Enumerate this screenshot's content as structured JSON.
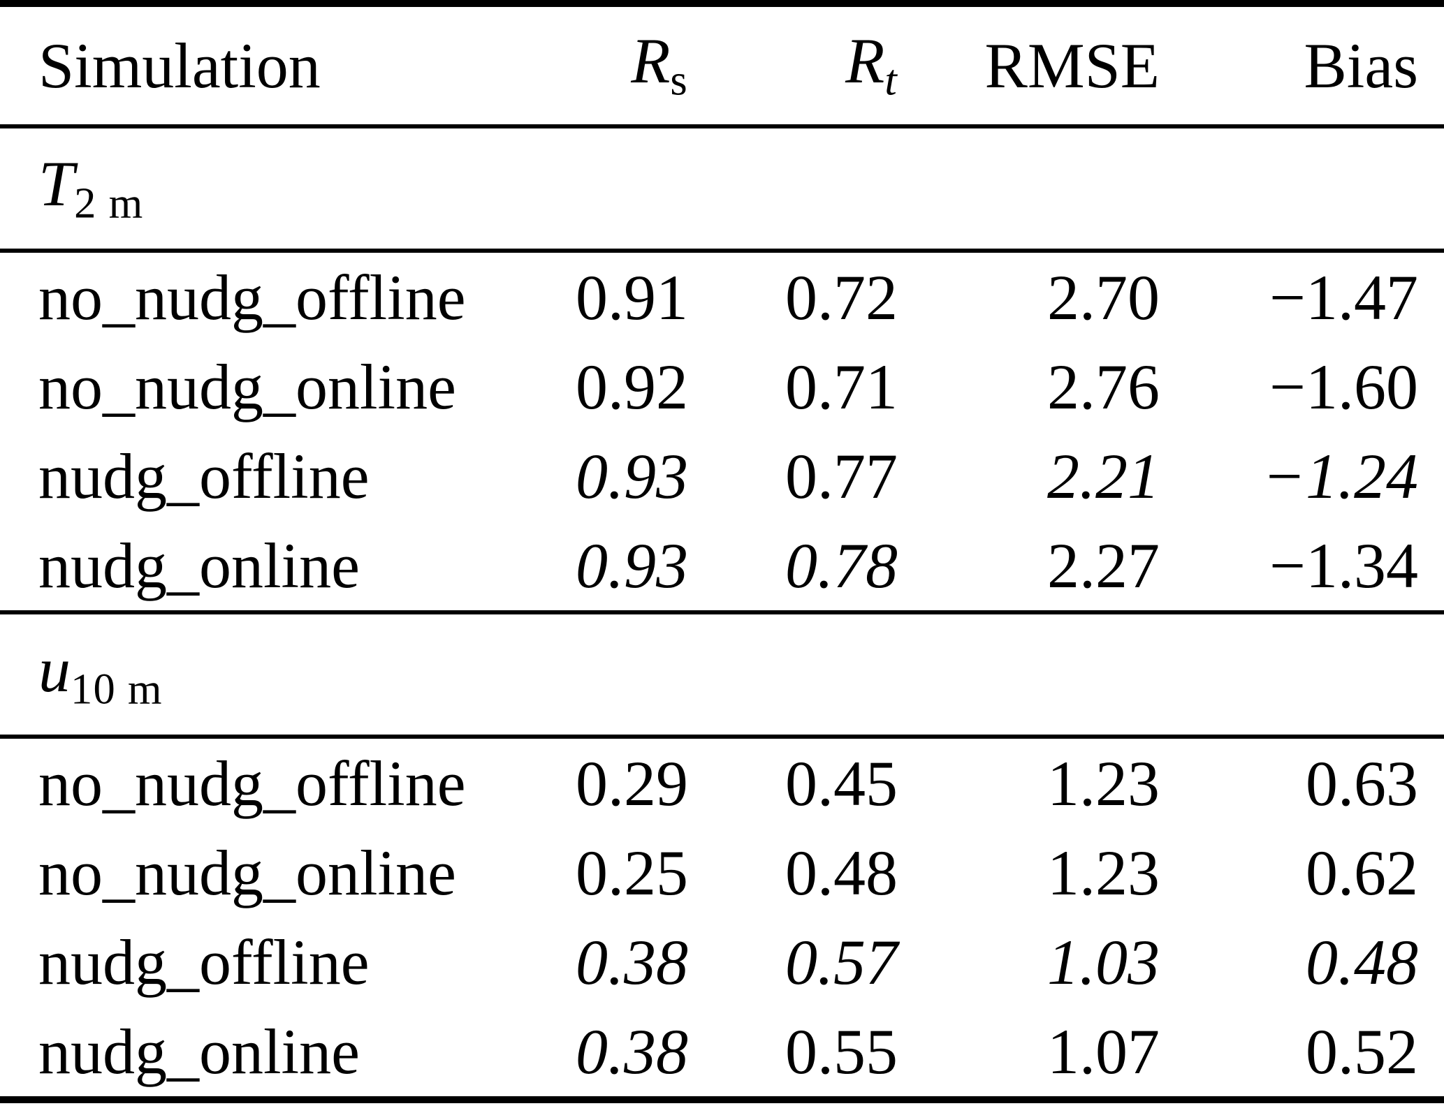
{
  "colors": {
    "background": "#ffffff",
    "text": "#000000",
    "rule": "#000000"
  },
  "table": {
    "columns": {
      "simulation": "Simulation",
      "rs": {
        "base": "R",
        "sub": "s"
      },
      "rt": {
        "base": "R",
        "sub": "t"
      },
      "rmse": "RMSE",
      "bias": "Bias"
    },
    "sections": [
      {
        "symbol": {
          "base": "T",
          "sub": "2 m"
        },
        "rows": [
          {
            "name": "no_nudg_offline",
            "values": [
              {
                "v": "0.91",
                "i": false
              },
              {
                "v": "0.72",
                "i": false
              },
              {
                "v": "2.70",
                "i": false
              },
              {
                "v": "−1.47",
                "i": false
              }
            ]
          },
          {
            "name": "no_nudg_online",
            "values": [
              {
                "v": "0.92",
                "i": false
              },
              {
                "v": "0.71",
                "i": false
              },
              {
                "v": "2.76",
                "i": false
              },
              {
                "v": "−1.60",
                "i": false
              }
            ]
          },
          {
            "name": "nudg_offline",
            "values": [
              {
                "v": "0.93",
                "i": true
              },
              {
                "v": "0.77",
                "i": false
              },
              {
                "v": "2.21",
                "i": true
              },
              {
                "v": "−1.24",
                "i": true
              }
            ]
          },
          {
            "name": "nudg_online",
            "values": [
              {
                "v": "0.93",
                "i": true
              },
              {
                "v": "0.78",
                "i": true
              },
              {
                "v": "2.27",
                "i": false
              },
              {
                "v": "−1.34",
                "i": false
              }
            ]
          }
        ]
      },
      {
        "symbol": {
          "base": "u",
          "sub": "10 m"
        },
        "rows": [
          {
            "name": "no_nudg_offline",
            "values": [
              {
                "v": "0.29",
                "i": false
              },
              {
                "v": "0.45",
                "i": false
              },
              {
                "v": "1.23",
                "i": false
              },
              {
                "v": "0.63",
                "i": false
              }
            ]
          },
          {
            "name": "no_nudg_online",
            "values": [
              {
                "v": "0.25",
                "i": false
              },
              {
                "v": "0.48",
                "i": false
              },
              {
                "v": "1.23",
                "i": false
              },
              {
                "v": "0.62",
                "i": false
              }
            ]
          },
          {
            "name": "nudg_offline",
            "values": [
              {
                "v": "0.38",
                "i": true
              },
              {
                "v": "0.57",
                "i": true
              },
              {
                "v": "1.03",
                "i": true
              },
              {
                "v": "0.48",
                "i": true
              }
            ]
          },
          {
            "name": "nudg_online",
            "values": [
              {
                "v": "0.38",
                "i": true
              },
              {
                "v": "0.55",
                "i": false
              },
              {
                "v": "1.07",
                "i": false
              },
              {
                "v": "0.52",
                "i": false
              }
            ]
          }
        ]
      }
    ]
  }
}
